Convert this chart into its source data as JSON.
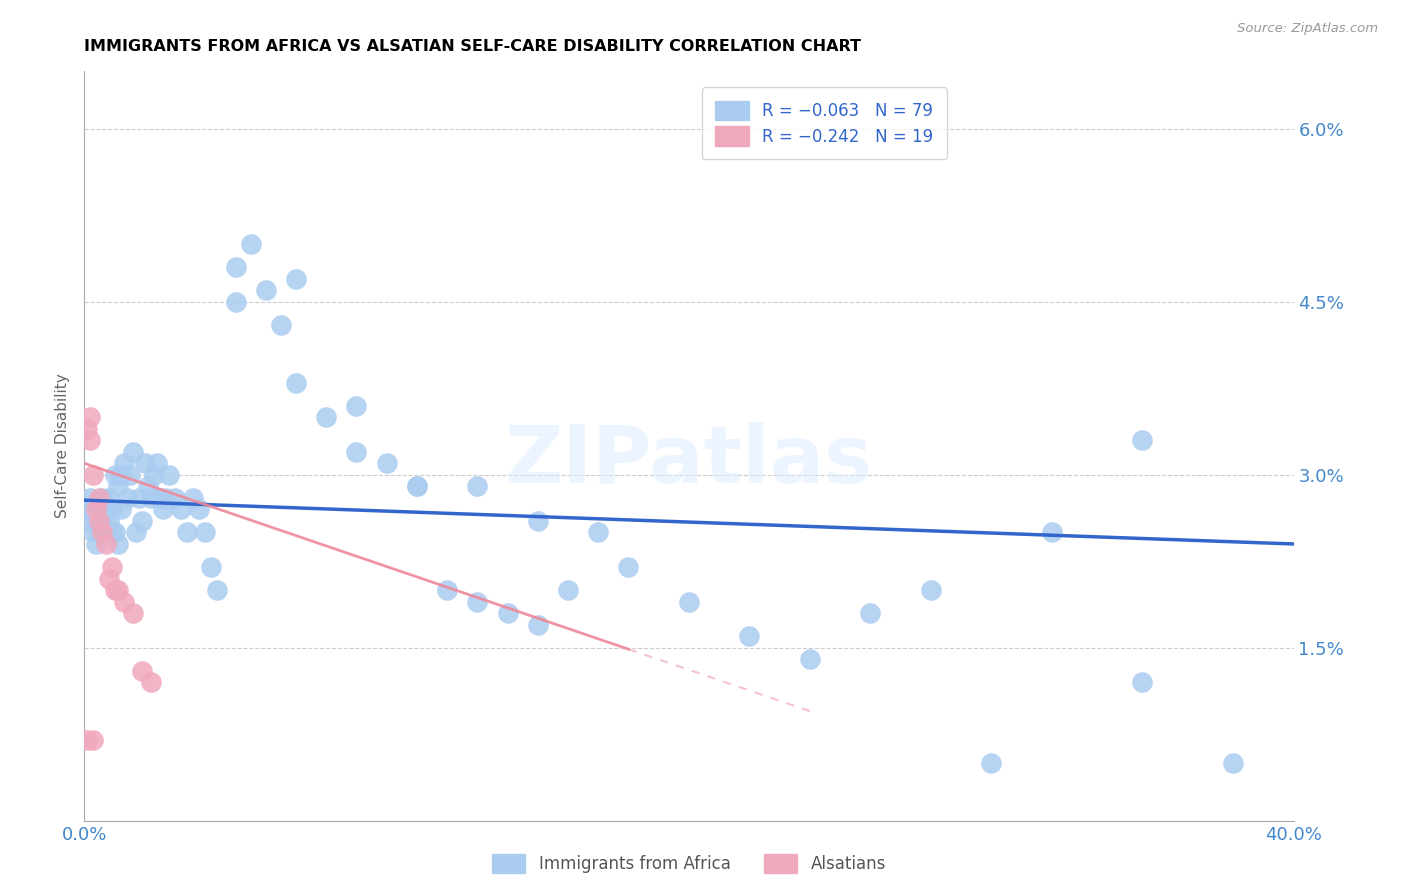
{
  "title": "IMMIGRANTS FROM AFRICA VS ALSATIAN SELF-CARE DISABILITY CORRELATION CHART",
  "source": "Source: ZipAtlas.com",
  "ylabel": "Self-Care Disability",
  "ytick_labels": [
    "6.0%",
    "4.5%",
    "3.0%",
    "1.5%"
  ],
  "ytick_values": [
    0.06,
    0.045,
    0.03,
    0.015
  ],
  "xlim": [
    0.0,
    0.4
  ],
  "ylim": [
    0.0,
    0.065
  ],
  "blue_color": "#aaccf0",
  "pink_color": "#f0a8bc",
  "blue_line_color": "#3366cc",
  "pink_line_color": "#ee8899",
  "watermark": "ZIPatlas",
  "blue_scatter_x": [
    0.001,
    0.002,
    0.002,
    0.003,
    0.003,
    0.004,
    0.004,
    0.005,
    0.005,
    0.006,
    0.006,
    0.007,
    0.007,
    0.008,
    0.008,
    0.009,
    0.009,
    0.01,
    0.01,
    0.011,
    0.011,
    0.012,
    0.012,
    0.013,
    0.014,
    0.015,
    0.016,
    0.017,
    0.018,
    0.019,
    0.02,
    0.021,
    0.022,
    0.023,
    0.024,
    0.025,
    0.026,
    0.027,
    0.028,
    0.03,
    0.032,
    0.034,
    0.036,
    0.038,
    0.04,
    0.042,
    0.044,
    0.05,
    0.055,
    0.06,
    0.065,
    0.07,
    0.08,
    0.09,
    0.1,
    0.11,
    0.12,
    0.13,
    0.14,
    0.15,
    0.16,
    0.18,
    0.2,
    0.22,
    0.24,
    0.26,
    0.28,
    0.3,
    0.32,
    0.35,
    0.38,
    0.05,
    0.07,
    0.09,
    0.11,
    0.13,
    0.15,
    0.17,
    0.35
  ],
  "blue_scatter_y": [
    0.027,
    0.026,
    0.028,
    0.027,
    0.025,
    0.026,
    0.024,
    0.025,
    0.027,
    0.026,
    0.028,
    0.025,
    0.027,
    0.026,
    0.028,
    0.025,
    0.027,
    0.03,
    0.025,
    0.029,
    0.024,
    0.03,
    0.027,
    0.031,
    0.028,
    0.03,
    0.032,
    0.025,
    0.028,
    0.026,
    0.031,
    0.029,
    0.028,
    0.03,
    0.031,
    0.028,
    0.027,
    0.028,
    0.03,
    0.028,
    0.027,
    0.025,
    0.028,
    0.027,
    0.025,
    0.022,
    0.02,
    0.048,
    0.05,
    0.046,
    0.043,
    0.038,
    0.035,
    0.032,
    0.031,
    0.029,
    0.02,
    0.019,
    0.018,
    0.017,
    0.02,
    0.022,
    0.019,
    0.016,
    0.014,
    0.018,
    0.02,
    0.005,
    0.025,
    0.012,
    0.005,
    0.045,
    0.047,
    0.036,
    0.029,
    0.029,
    0.026,
    0.025,
    0.033
  ],
  "pink_scatter_x": [
    0.001,
    0.002,
    0.002,
    0.003,
    0.004,
    0.005,
    0.006,
    0.007,
    0.009,
    0.011,
    0.013,
    0.016,
    0.019,
    0.022,
    0.001,
    0.003,
    0.005,
    0.008,
    0.01
  ],
  "pink_scatter_y": [
    0.034,
    0.035,
    0.033,
    0.03,
    0.027,
    0.028,
    0.025,
    0.024,
    0.022,
    0.02,
    0.019,
    0.018,
    0.013,
    0.012,
    0.007,
    0.007,
    0.026,
    0.021,
    0.02
  ],
  "blue_trend_x": [
    0.0,
    0.4
  ],
  "blue_trend_y": [
    0.0278,
    0.024
  ],
  "pink_trend_x": [
    0.0,
    0.24
  ],
  "pink_trend_y": [
    0.031,
    0.0095
  ]
}
